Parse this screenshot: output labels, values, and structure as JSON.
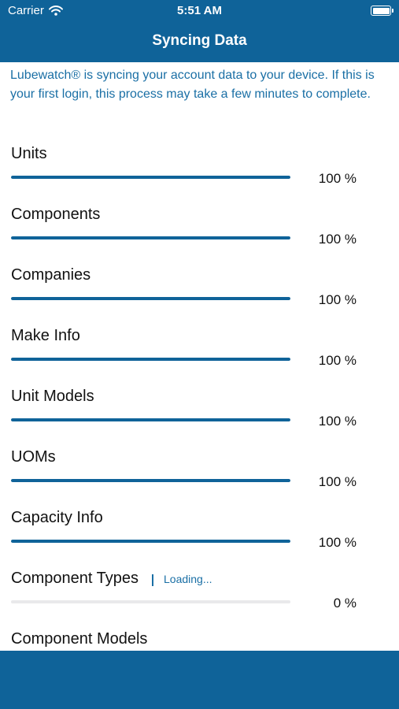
{
  "status_bar": {
    "carrier": "Carrier",
    "time": "5:51 AM"
  },
  "header": {
    "title": "Syncing Data"
  },
  "intro": "Lubewatch® is syncing your account data to your device. If this is your first login, this process may take a few minutes to complete.",
  "sync_items": [
    {
      "label": "Units",
      "progress": 100,
      "percent_text": "100 %"
    },
    {
      "label": "Components",
      "progress": 100,
      "percent_text": "100 %"
    },
    {
      "label": "Companies",
      "progress": 100,
      "percent_text": "100 %"
    },
    {
      "label": "Make Info",
      "progress": 100,
      "percent_text": "100 %"
    },
    {
      "label": "Unit Models",
      "progress": 100,
      "percent_text": "100 %"
    },
    {
      "label": "UOMs",
      "progress": 100,
      "percent_text": "100 %"
    },
    {
      "label": "Capacity Info",
      "progress": 100,
      "percent_text": "100 %"
    },
    {
      "label": "Component Types",
      "progress": 0,
      "percent_text": "0 %",
      "status": "Loading..."
    },
    {
      "label": "Component Models"
    }
  ],
  "colors": {
    "brand": "#0f6399",
    "link": "#1a6fa5",
    "track": "#e9e9eb"
  }
}
